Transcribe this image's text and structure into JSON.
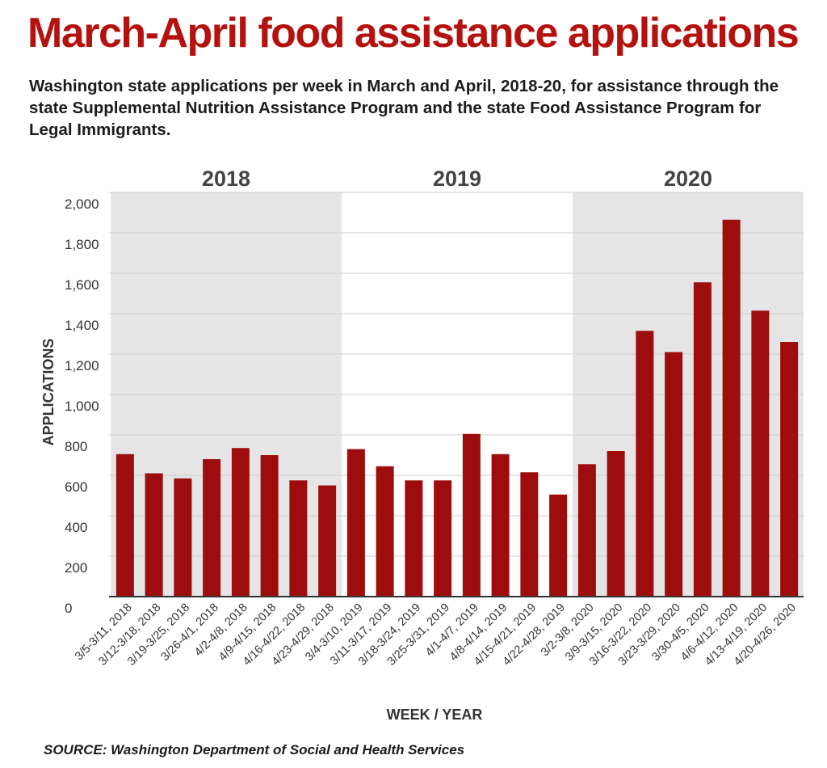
{
  "header": {
    "title": "March-April food assistance applications",
    "subtitle": "Washington state applications per week in March and April, 2018-20, for assistance through the state Supplemental Nutrition Assistance Program and the state Food Assistance Program for Legal Immigrants."
  },
  "footer": {
    "source": "SOURCE: Washington Department of Social and Health Services"
  },
  "colors": {
    "title": "#b5120f",
    "bar": "#9e0d0d",
    "shade": "#e5e5e5",
    "grid": "#cfcfcf",
    "axis": "#333333"
  },
  "chart_data": {
    "type": "bar",
    "title": "March-April food assistance applications",
    "xlabel": "WEEK / YEAR",
    "ylabel": "APPLICATIONS",
    "ylim": [
      0,
      2000
    ],
    "yticks": [
      0,
      200,
      400,
      600,
      800,
      1000,
      1200,
      1400,
      1600,
      1800,
      2000
    ],
    "ytick_labels": [
      "0",
      "200",
      "400",
      "600",
      "800",
      "1,000",
      "1,200",
      "1,400",
      "1,600",
      "1,800",
      "2,000"
    ],
    "grid": true,
    "year_groups": [
      {
        "label": "2018",
        "start": 0,
        "end": 7,
        "shaded": true
      },
      {
        "label": "2019",
        "start": 8,
        "end": 15,
        "shaded": false
      },
      {
        "label": "2020",
        "start": 16,
        "end": 23,
        "shaded": true
      }
    ],
    "categories": [
      "3/5-3/11, 2018",
      "3/12-3/18, 2018",
      "3/19-3/25, 2018",
      "3/26-4/1, 2018",
      "4/2-4/8, 2018",
      "4/9-4/15, 2018",
      "4/16-4/22, 2018",
      "4/23-4/29, 2018",
      "3/4-3/10, 2019",
      "3/11-3/17, 2019",
      "3/18-3/24, 2019",
      "3/25-3/31, 2019",
      "4/1-4/7, 2019",
      "4/8-4/14, 2019",
      "4/15-4/21, 2019",
      "4/22-4/28, 2019",
      "3/2-3/8, 2020",
      "3/9-3/15, 2020",
      "3/16-3/22, 2020",
      "3/23-3/29, 2020",
      "3/30-4/5, 2020",
      "4/6-4/12, 2020",
      "4/13-4/19, 2020",
      "4/20-4/26, 2020"
    ],
    "values": [
      705,
      610,
      585,
      680,
      735,
      700,
      575,
      550,
      730,
      645,
      575,
      575,
      805,
      705,
      615,
      505,
      655,
      720,
      1315,
      1210,
      1555,
      1865,
      1415,
      1260
    ]
  }
}
